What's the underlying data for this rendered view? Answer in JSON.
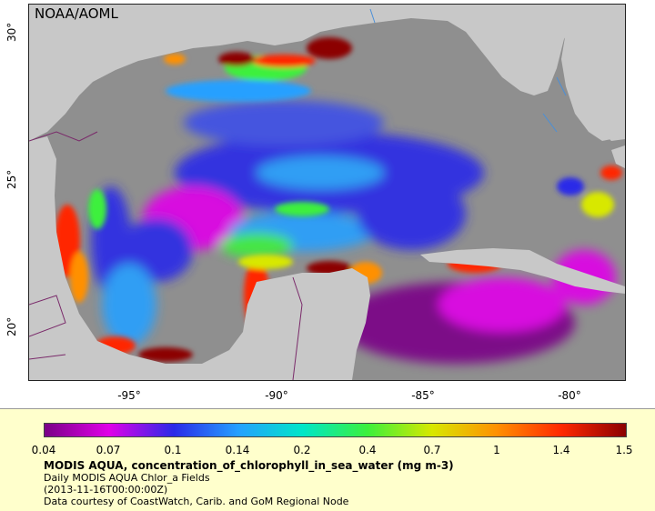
{
  "map": {
    "credit": "NOAA/AOML",
    "lon_ticks": [
      "-95°",
      "-90°",
      "-85°",
      "-80°"
    ],
    "lat_ticks": [
      "30°",
      "25°",
      "20°"
    ]
  },
  "legend": {
    "ticks": [
      "0.04",
      "0.07",
      "0.1",
      "0.14",
      "0.2",
      "0.4",
      "0.7",
      "1",
      "1.4",
      "1.5"
    ],
    "colors": [
      "#7a0087",
      "#e000e8",
      "#2a2ae8",
      "#25a0ff",
      "#00e6c8",
      "#3cf03c",
      "#d8e800",
      "#ff9000",
      "#ff2800",
      "#8c0000"
    ],
    "title": "MODIS AQUA, concentration_of_chlorophyll_in_sea_water (mg m-3)",
    "line1": "Daily MODIS AQUA Chlor_a Fields",
    "line2": "(2013-11-16T00:00:00Z)",
    "line3": "Data courtesy of CoastWatch, Carib. and GoM Regional Node"
  },
  "colors": {
    "land": "#c8c8c8",
    "ocean_nodata": "#8f8f8f",
    "legend_bg": "#ffffcc",
    "borders": "#7a2a6a",
    "rivers": "#4a8fd8"
  }
}
